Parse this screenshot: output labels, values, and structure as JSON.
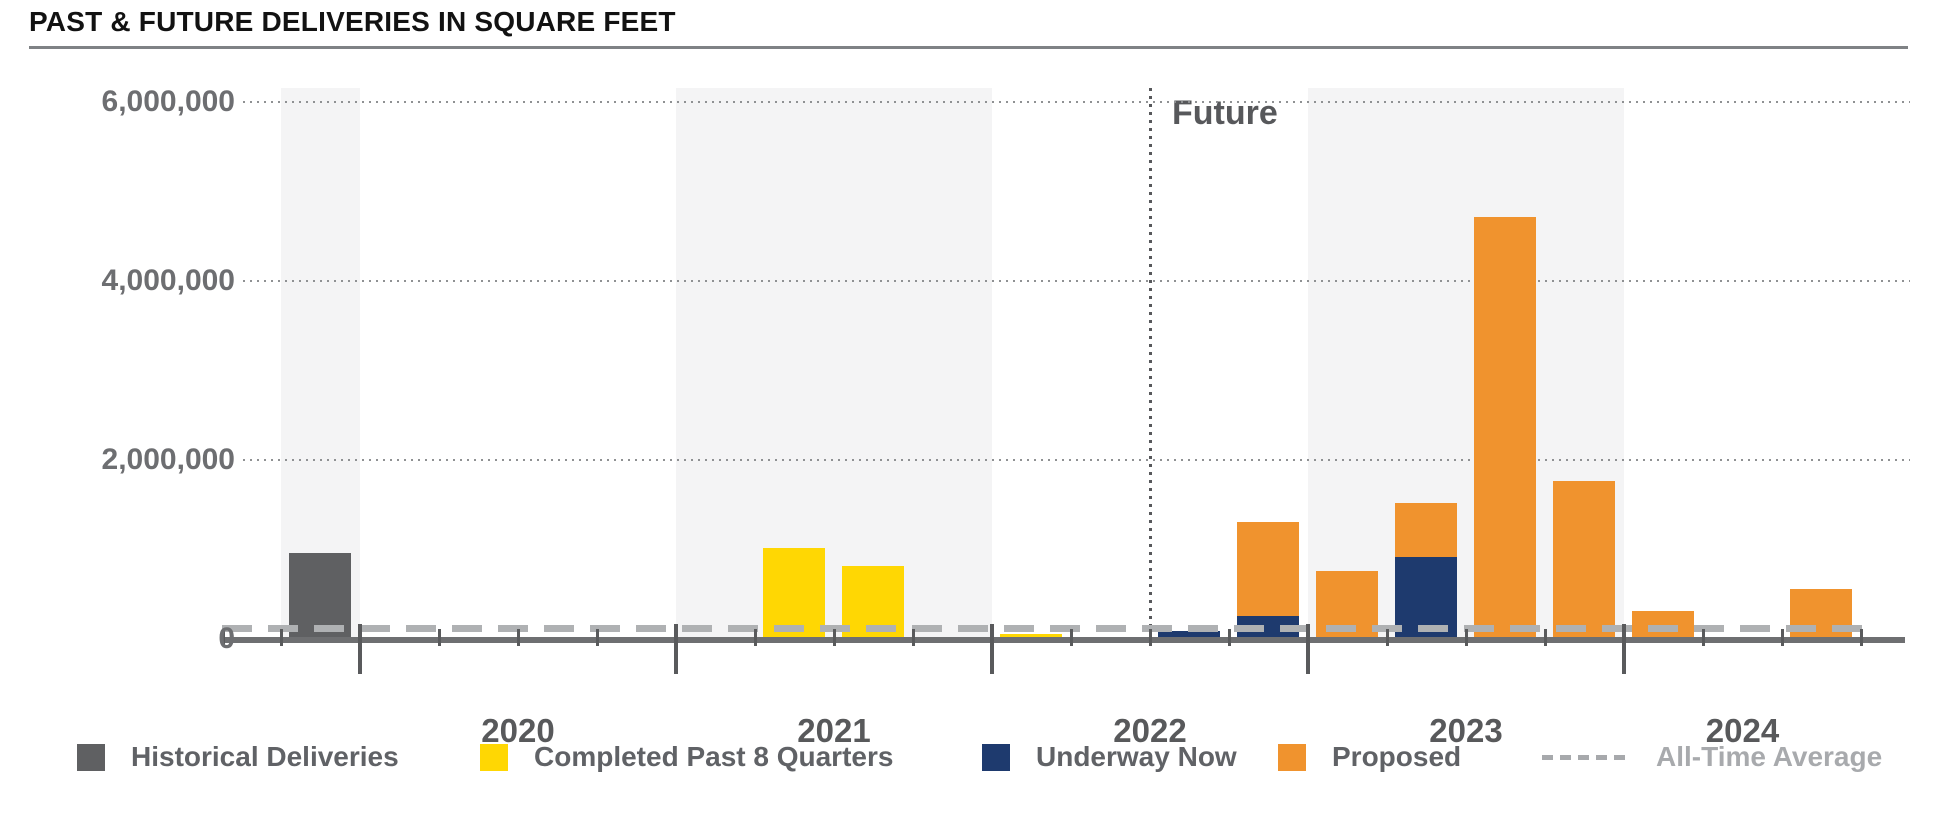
{
  "title": "PAST & FUTURE DELIVERIES IN SQUARE FEET",
  "chart_data": {
    "type": "bar",
    "stacked": true,
    "title": "PAST & FUTURE DELIVERIES IN SQUARE FEET",
    "unit": "square feet",
    "ylim": [
      0,
      6000000
    ],
    "ytick_values": [
      0,
      2000000,
      4000000,
      6000000
    ],
    "ytick_labels": [
      "0",
      "2,000,000",
      "4,000,000",
      "6,000,000"
    ],
    "grid": "dotted horizontal",
    "timeline": {
      "start": "2019-Q4",
      "end": "2024-Q4"
    },
    "x_year_labels": [
      "2020",
      "2021",
      "2022",
      "2023",
      "2024"
    ],
    "future_label": "Future",
    "future_divider_before": "2022-Q3",
    "all_time_average": 120000,
    "shaded_periods": [
      {
        "from": "2019-Q4",
        "to": "2019-Q4"
      },
      {
        "from": "2021-Q1",
        "to": "2021-Q4"
      },
      {
        "from": "2023-Q1",
        "to": "2023-Q4"
      }
    ],
    "series": [
      {
        "key": "historical",
        "name": "Historical Deliveries",
        "color": "#5F6062",
        "swatch": "square"
      },
      {
        "key": "completed",
        "name": "Completed Past 8 Quarters",
        "color": "#FFD703",
        "swatch": "square"
      },
      {
        "key": "underway",
        "name": "Underway Now",
        "color": "#1E3A6E",
        "swatch": "square"
      },
      {
        "key": "proposed",
        "name": "Proposed",
        "color": "#F0932E",
        "swatch": "square"
      },
      {
        "key": "average",
        "name": "All-Time Average",
        "color": "#ACAEB0",
        "swatch": "dashed-line"
      }
    ],
    "points": [
      {
        "quarter": "2019-Q4",
        "historical": 950000
      },
      {
        "quarter": "2020-Q1"
      },
      {
        "quarter": "2020-Q2"
      },
      {
        "quarter": "2020-Q3"
      },
      {
        "quarter": "2020-Q4"
      },
      {
        "quarter": "2021-Q1"
      },
      {
        "quarter": "2021-Q2",
        "completed": 1000000
      },
      {
        "quarter": "2021-Q3",
        "completed": 800000
      },
      {
        "quarter": "2021-Q4"
      },
      {
        "quarter": "2022-Q1",
        "completed": 40000
      },
      {
        "quarter": "2022-Q2"
      },
      {
        "quarter": "2022-Q3",
        "underway": 80000
      },
      {
        "quarter": "2022-Q4",
        "underway": 250000,
        "proposed": 1050000
      },
      {
        "quarter": "2023-Q1",
        "proposed": 750000
      },
      {
        "quarter": "2023-Q2",
        "underway": 900000,
        "proposed": 600000
      },
      {
        "quarter": "2023-Q3",
        "proposed": 4700000
      },
      {
        "quarter": "2023-Q4",
        "proposed": 1750000
      },
      {
        "quarter": "2024-Q1",
        "proposed": 300000
      },
      {
        "quarter": "2024-Q2"
      },
      {
        "quarter": "2024-Q3",
        "proposed": 550000
      },
      {
        "quarter": "2024-Q4"
      }
    ]
  },
  "legend": {
    "items": [
      {
        "label": "Historical Deliveries"
      },
      {
        "label": "Completed Past 8 Quarters"
      },
      {
        "label": "Underway Now"
      },
      {
        "label": "Proposed"
      },
      {
        "label": "All-Time Average"
      }
    ]
  }
}
